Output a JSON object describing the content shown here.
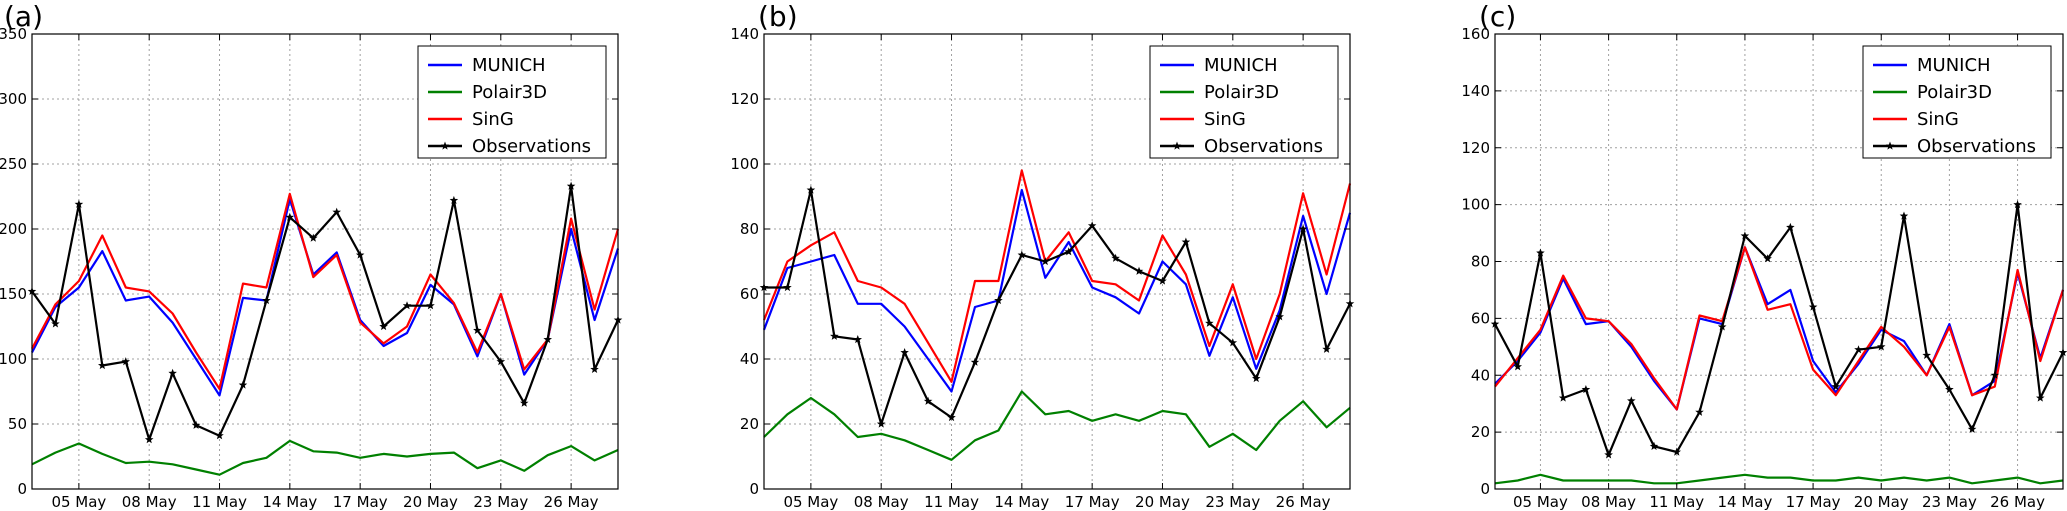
{
  "chart_data": [
    {
      "type": "line",
      "panel_label": "(a)",
      "title": "",
      "xlabel": "",
      "ylabel": "",
      "ylim": [
        0,
        350
      ],
      "yticks": [
        0,
        50,
        100,
        150,
        200,
        250,
        300,
        350
      ],
      "xlim": [
        3,
        28
      ],
      "xticks": [
        {
          "x": 5,
          "label": "05 May"
        },
        {
          "x": 8,
          "label": "08 May"
        },
        {
          "x": 11,
          "label": "11 May"
        },
        {
          "x": 14,
          "label": "14 May"
        },
        {
          "x": 17,
          "label": "17 May"
        },
        {
          "x": 20,
          "label": "20 May"
        },
        {
          "x": 23,
          "label": "23 May"
        },
        {
          "x": 26,
          "label": "26 May"
        }
      ],
      "grid": true,
      "legend_position": "upper-right",
      "x": [
        3,
        4,
        5,
        6,
        7,
        8,
        9,
        10,
        11,
        12,
        13,
        14,
        15,
        16,
        17,
        18,
        19,
        20,
        21,
        22,
        23,
        24,
        25,
        26,
        27,
        28
      ],
      "series": [
        {
          "name": "MUNICH",
          "color": "#0000ff",
          "marker": false,
          "values": [
            105,
            140,
            155,
            183,
            145,
            148,
            128,
            100,
            72,
            147,
            145,
            223,
            165,
            182,
            130,
            110,
            120,
            157,
            142,
            102,
            150,
            88,
            115,
            200,
            130,
            185
          ]
        },
        {
          "name": "Polair3D",
          "color": "#008000",
          "marker": false,
          "values": [
            19,
            28,
            35,
            27,
            20,
            21,
            19,
            15,
            11,
            20,
            24,
            37,
            29,
            28,
            24,
            27,
            25,
            27,
            28,
            16,
            22,
            14,
            26,
            33,
            22,
            30
          ]
        },
        {
          "name": "SinG",
          "color": "#ff0000",
          "marker": false,
          "values": [
            108,
            142,
            160,
            195,
            155,
            152,
            135,
            105,
            77,
            158,
            155,
            227,
            163,
            180,
            128,
            112,
            125,
            165,
            143,
            105,
            150,
            92,
            115,
            208,
            138,
            200
          ]
        },
        {
          "name": "Observations",
          "color": "#000000",
          "marker": true,
          "values": [
            152,
            127,
            219,
            95,
            98,
            38,
            89,
            49,
            41,
            80,
            145,
            209,
            193,
            213,
            180,
            125,
            141,
            141,
            222,
            122,
            98,
            66,
            115,
            233,
            92,
            130
          ]
        }
      ]
    },
    {
      "type": "line",
      "panel_label": "(b)",
      "title": "",
      "xlabel": "",
      "ylabel": "",
      "ylim": [
        0,
        140
      ],
      "yticks": [
        0,
        20,
        40,
        60,
        80,
        100,
        120,
        140
      ],
      "xlim": [
        3,
        28
      ],
      "xticks": [
        {
          "x": 5,
          "label": "05 May"
        },
        {
          "x": 8,
          "label": "08 May"
        },
        {
          "x": 11,
          "label": "11 May"
        },
        {
          "x": 14,
          "label": "14 May"
        },
        {
          "x": 17,
          "label": "17 May"
        },
        {
          "x": 20,
          "label": "20 May"
        },
        {
          "x": 23,
          "label": "23 May"
        },
        {
          "x": 26,
          "label": "26 May"
        }
      ],
      "grid": true,
      "legend_position": "upper-right",
      "x": [
        3,
        4,
        5,
        6,
        7,
        8,
        9,
        10,
        11,
        12,
        13,
        14,
        15,
        16,
        17,
        18,
        19,
        20,
        21,
        22,
        23,
        24,
        25,
        26,
        27,
        28
      ],
      "series": [
        {
          "name": "MUNICH",
          "color": "#0000ff",
          "marker": false,
          "values": [
            49,
            68,
            70,
            72,
            57,
            57,
            50,
            40,
            30,
            56,
            58,
            92,
            65,
            76,
            62,
            59,
            54,
            70,
            63,
            41,
            59,
            37,
            55,
            84,
            60,
            85
          ]
        },
        {
          "name": "Polair3D",
          "color": "#008000",
          "marker": false,
          "values": [
            16,
            23,
            28,
            23,
            16,
            17,
            15,
            12,
            9,
            15,
            18,
            30,
            23,
            24,
            21,
            23,
            21,
            24,
            23,
            13,
            17,
            12,
            21,
            27,
            19,
            25
          ]
        },
        {
          "name": "SinG",
          "color": "#ff0000",
          "marker": false,
          "values": [
            52,
            70,
            75,
            79,
            64,
            62,
            57,
            45,
            33,
            64,
            64,
            98,
            70,
            79,
            64,
            63,
            58,
            78,
            66,
            44,
            63,
            40,
            60,
            91,
            66,
            94
          ]
        },
        {
          "name": "Observations",
          "color": "#000000",
          "marker": true,
          "values": [
            62,
            62,
            92,
            47,
            46,
            20,
            42,
            27,
            22,
            39,
            58,
            72,
            70,
            73,
            81,
            71,
            67,
            64,
            76,
            51,
            45,
            34,
            53,
            80,
            43,
            57
          ]
        }
      ]
    },
    {
      "type": "line",
      "panel_label": "(c)",
      "title": "",
      "xlabel": "",
      "ylabel": "",
      "ylim": [
        0,
        160
      ],
      "yticks": [
        0,
        20,
        40,
        60,
        80,
        100,
        120,
        140,
        160
      ],
      "xlim": [
        3,
        28
      ],
      "xticks": [
        {
          "x": 5,
          "label": "05 May"
        },
        {
          "x": 8,
          "label": "08 May"
        },
        {
          "x": 11,
          "label": "11 May"
        },
        {
          "x": 14,
          "label": "14 May"
        },
        {
          "x": 17,
          "label": "17 May"
        },
        {
          "x": 20,
          "label": "20 May"
        },
        {
          "x": 23,
          "label": "23 May"
        },
        {
          "x": 26,
          "label": "26 May"
        }
      ],
      "grid": true,
      "legend_position": "upper-right",
      "x": [
        3,
        4,
        5,
        6,
        7,
        8,
        9,
        10,
        11,
        12,
        13,
        14,
        15,
        16,
        17,
        18,
        19,
        20,
        21,
        22,
        23,
        24,
        25,
        26,
        27,
        28
      ],
      "series": [
        {
          "name": "MUNICH",
          "color": "#0000ff",
          "marker": false,
          "values": [
            37,
            45,
            55,
            74,
            58,
            59,
            50,
            38,
            28,
            60,
            58,
            85,
            65,
            70,
            45,
            34,
            44,
            56,
            52,
            40,
            58,
            33,
            38,
            76,
            46,
            70
          ]
        },
        {
          "name": "Polair3D",
          "color": "#008000",
          "marker": false,
          "values": [
            2,
            3,
            5,
            3,
            3,
            3,
            3,
            2,
            2,
            3,
            4,
            5,
            4,
            4,
            3,
            3,
            4,
            3,
            4,
            3,
            4,
            2,
            3,
            4,
            2,
            3
          ]
        },
        {
          "name": "SinG",
          "color": "#ff0000",
          "marker": false,
          "values": [
            36,
            46,
            56,
            75,
            60,
            59,
            51,
            39,
            28,
            61,
            59,
            85,
            63,
            65,
            42,
            33,
            45,
            57,
            50,
            40,
            57,
            33,
            36,
            77,
            45,
            70
          ]
        },
        {
          "name": "Observations",
          "color": "#000000",
          "marker": true,
          "values": [
            58,
            43,
            83,
            32,
            35,
            12,
            31,
            15,
            13,
            27,
            57,
            89,
            81,
            92,
            64,
            36,
            49,
            50,
            96,
            47,
            35,
            21,
            40,
            100,
            32,
            48
          ]
        }
      ]
    }
  ]
}
